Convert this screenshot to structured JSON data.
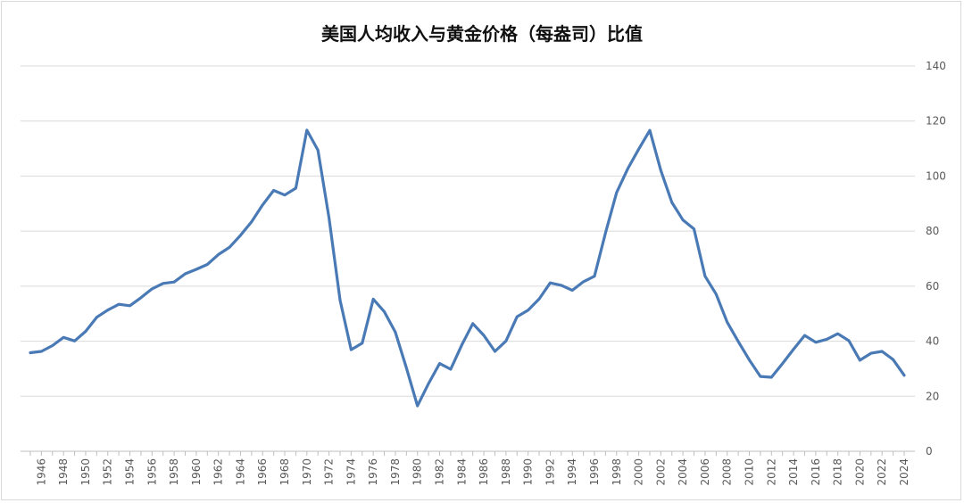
{
  "chart_data": {
    "type": "line",
    "title": "美国人均收入与黄金价格（每盎司）比值",
    "xlabel": "",
    "ylabel": "",
    "ylim": [
      0,
      140
    ],
    "yticks": [
      0,
      20,
      40,
      60,
      80,
      100,
      120,
      140
    ],
    "y_axis_position": "right",
    "grid": "horizontal",
    "legend": "none",
    "line_color": "#4a7ab5",
    "x": [
      1945,
      1946,
      1947,
      1948,
      1949,
      1950,
      1951,
      1952,
      1953,
      1954,
      1955,
      1956,
      1957,
      1958,
      1959,
      1960,
      1961,
      1962,
      1963,
      1964,
      1965,
      1966,
      1967,
      1968,
      1969,
      1970,
      1971,
      1972,
      1973,
      1974,
      1975,
      1976,
      1977,
      1978,
      1979,
      1980,
      1981,
      1982,
      1983,
      1984,
      1985,
      1986,
      1987,
      1988,
      1989,
      1990,
      1991,
      1992,
      1993,
      1994,
      1995,
      1996,
      1997,
      1998,
      1999,
      2000,
      2001,
      2002,
      2003,
      2004,
      2005,
      2006,
      2007,
      2008,
      2009,
      2010,
      2011,
      2012,
      2013,
      2014,
      2015,
      2016,
      2017,
      2018,
      2019,
      2020,
      2021,
      2022,
      2023,
      2024
    ],
    "xtick_labels": [
      "1946",
      "1948",
      "1950",
      "1952",
      "1954",
      "1956",
      "1958",
      "1960",
      "1962",
      "1964",
      "1966",
      "1968",
      "1970",
      "1972",
      "1974",
      "1976",
      "1978",
      "1980",
      "1982",
      "1984",
      "1986",
      "1988",
      "1990",
      "1992",
      "1994",
      "1996",
      "1998",
      "2000",
      "2002",
      "2004",
      "2006",
      "2008",
      "2010",
      "2012",
      "2014",
      "2016",
      "2018",
      "2020",
      "2022",
      "2024"
    ],
    "series": [
      {
        "values": [
          35.8,
          36.3,
          38.4,
          41.4,
          40.1,
          43.6,
          48.7,
          51.3,
          53.4,
          52.9,
          55.8,
          59.0,
          61.0,
          61.5,
          64.5,
          66.1,
          67.9,
          71.5,
          74.1,
          78.5,
          83.4,
          89.5,
          94.8,
          93.1,
          95.6,
          116.7,
          109.4,
          84.8,
          54.9,
          36.9,
          39.3,
          55.3,
          50.7,
          43.3,
          30.3,
          16.5,
          24.6,
          31.9,
          29.8,
          38.6,
          46.4,
          42.1,
          36.3,
          40.1,
          48.9,
          51.3,
          55.4,
          61.2,
          60.3,
          58.5,
          61.6,
          63.6,
          79.4,
          94.0,
          102.6,
          109.8,
          116.6,
          102.0,
          90.4,
          84.0,
          80.8,
          63.6,
          57.1,
          46.9,
          39.9,
          33.2,
          27.2,
          26.9,
          31.9,
          37.1,
          42.1,
          39.6,
          40.7,
          42.7,
          40.2,
          33.1,
          35.6,
          36.3,
          33.3,
          27.6
        ]
      }
    ]
  }
}
